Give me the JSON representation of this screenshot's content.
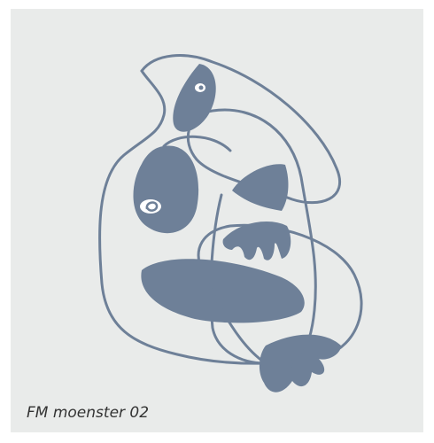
{
  "caption": "FM moenster 02"
}
